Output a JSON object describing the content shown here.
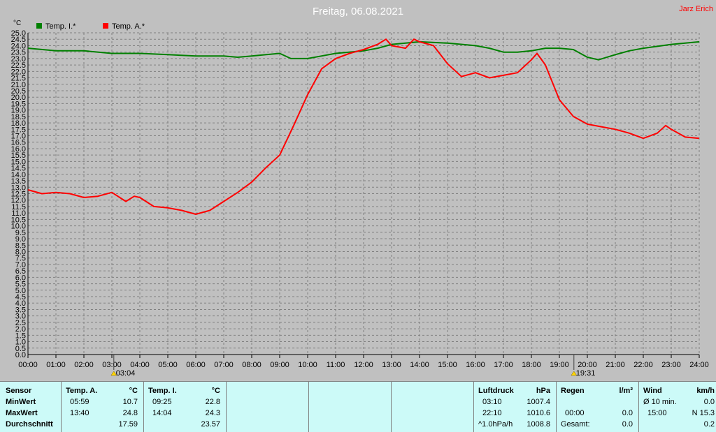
{
  "header": {
    "title": "Freitag, 06.08.2021",
    "brand": "Jarz Erich",
    "yunit": "°C"
  },
  "colors": {
    "indoor": "#008000",
    "outdoor": "#ff0000",
    "plot_bg": "#c0c0c0",
    "table_bg": "#ccfaf8",
    "brand": "#ff0000"
  },
  "chart_data": {
    "type": "line",
    "title": "Freitag, 06.08.2021",
    "ylabel": "°C",
    "xlim": [
      0,
      24
    ],
    "ylim": [
      0,
      25
    ],
    "grid": true,
    "legend": "top-left",
    "yticks": [
      "0.0",
      "0.5",
      "1.0",
      "1.5",
      "2.0",
      "2.5",
      "3.0",
      "3.5",
      "4.0",
      "4.5",
      "5.0",
      "5.5",
      "6.0",
      "6.5",
      "7.0",
      "7.5",
      "8.0",
      "8.5",
      "9.0",
      "9.5",
      "10.0",
      "10.5",
      "11.0",
      "11.5",
      "12.0",
      "12.5",
      "13.0",
      "13.5",
      "14.0",
      "14.5",
      "15.0",
      "15.5",
      "16.0",
      "16.5",
      "17.0",
      "17.5",
      "18.0",
      "18.5",
      "19.0",
      "19.5",
      "20.0",
      "20.5",
      "21.0",
      "21.5",
      "22.0",
      "22.5",
      "23.0",
      "23.5",
      "24.0",
      "24.5",
      "25.0"
    ],
    "xticks": [
      "00:00",
      "01:00",
      "02:00",
      "03:00",
      "04:00",
      "05:00",
      "06:00",
      "07:00",
      "08:00",
      "09:00",
      "10:00",
      "11:00",
      "12:00",
      "13:00",
      "14:00",
      "15:00",
      "16:00",
      "17:00",
      "18:00",
      "19:00",
      "20:00",
      "21:00",
      "22:00",
      "23:00",
      "24:00"
    ],
    "markers": [
      {
        "hour": 3.07,
        "label": "03:04"
      },
      {
        "hour": 19.52,
        "label": "19:31"
      }
    ],
    "series": [
      {
        "name": "Temp. I.*",
        "color": "#008000",
        "x": [
          0,
          1,
          2,
          3,
          4,
          5,
          6,
          7,
          7.5,
          8,
          9,
          9.4,
          10,
          10.5,
          11,
          12,
          12.5,
          13,
          14,
          15,
          16,
          16.5,
          17,
          17.5,
          18,
          18.5,
          19,
          19.5,
          20,
          20.4,
          21,
          21.5,
          22,
          23,
          24
        ],
        "y": [
          23.8,
          23.6,
          23.6,
          23.4,
          23.4,
          23.3,
          23.2,
          23.2,
          23.1,
          23.2,
          23.4,
          23.0,
          23.0,
          23.2,
          23.4,
          23.6,
          23.8,
          24.1,
          24.3,
          24.2,
          24.0,
          23.8,
          23.5,
          23.5,
          23.6,
          23.8,
          23.8,
          23.7,
          23.1,
          22.9,
          23.3,
          23.6,
          23.8,
          24.1,
          24.3
        ]
      },
      {
        "name": "Temp. A.*",
        "color": "#ff0000",
        "x": [
          0,
          0.5,
          1,
          1.5,
          2,
          2.5,
          3,
          3.5,
          3.8,
          4,
          4.5,
          5,
          5.5,
          6,
          6.5,
          7,
          7.5,
          8,
          8.5,
          9,
          9.5,
          10,
          10.5,
          11,
          11.5,
          12,
          12.5,
          12.8,
          13,
          13.5,
          13.8,
          14,
          14.5,
          15,
          15.5,
          16,
          16.5,
          17,
          17.5,
          18,
          18.2,
          18.5,
          19,
          19.5,
          20,
          20.5,
          21,
          21.5,
          22,
          22.5,
          22.8,
          23,
          23.5,
          24
        ],
        "y": [
          12.8,
          12.5,
          12.6,
          12.5,
          12.2,
          12.3,
          12.6,
          11.9,
          12.3,
          12.2,
          11.5,
          11.4,
          11.2,
          10.9,
          11.2,
          11.9,
          12.6,
          13.4,
          14.5,
          15.5,
          17.8,
          20.2,
          22.2,
          23.0,
          23.4,
          23.7,
          24.1,
          24.5,
          24.0,
          23.8,
          24.5,
          24.3,
          24.0,
          22.6,
          21.6,
          21.9,
          21.5,
          21.7,
          21.9,
          22.9,
          23.4,
          22.5,
          19.8,
          18.5,
          17.9,
          17.7,
          17.5,
          17.2,
          16.8,
          17.2,
          17.8,
          17.5,
          16.9,
          16.8
        ]
      }
    ]
  },
  "table": {
    "sensor": {
      "header": "Sensor",
      "rows": [
        "MinWert",
        "MaxWert",
        "Durchschnitt"
      ]
    },
    "outdoor": {
      "header": "Temp. A.",
      "unit": "°C",
      "min_time": "05:59",
      "min": "10.7",
      "max_time": "13:40",
      "max": "24.8",
      "avg": "17.59"
    },
    "indoor": {
      "header": "Temp. I.",
      "unit": "°C",
      "min_time": "09:25",
      "min": "22.8",
      "max_time": "14:04",
      "max": "24.3",
      "avg": "23.57"
    },
    "pressure": {
      "header": "Luftdruck",
      "unit": "hPa",
      "min_time": "03:10",
      "min": "1007.4",
      "max_time": "22:10",
      "max": "1010.6",
      "trend_label": "^1.0hPa/h",
      "trend": "1008.8"
    },
    "rain": {
      "header": "Regen",
      "unit": "l/m²",
      "row2_time": "00:00",
      "row2": "0.0",
      "total_label": "Gesamt:",
      "total": "0.0"
    },
    "wind": {
      "header": "Wind",
      "unit": "km/h",
      "avg_label": "Ø 10 min.",
      "avg": "0.0",
      "gust_time": "15:00",
      "gust": "N 15.3",
      "row3": "0.2"
    }
  }
}
